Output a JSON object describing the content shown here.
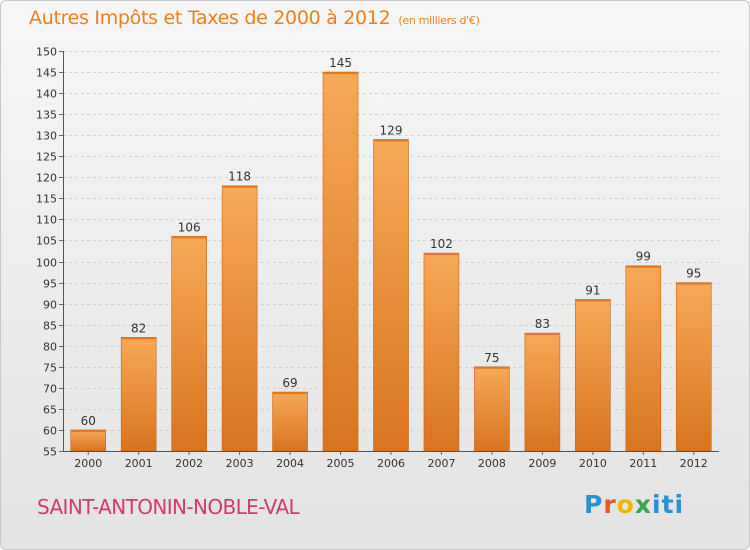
{
  "header": {
    "title": "Autres Impôts et Taxes de 2000 à 2012",
    "unit": "(en milliers d'€)"
  },
  "footer": {
    "commune": "SAINT-ANTONIN-NOBLE-VAL",
    "brand": [
      "P",
      "r",
      "o",
      "x",
      "iti"
    ]
  },
  "colors": {
    "title": "#ef7f1a",
    "commune": "#d33a6c",
    "bar_top": "#f7a957",
    "bar_bottom": "#d9741e"
  },
  "chart_data": {
    "type": "bar",
    "title": "Autres Impôts et Taxes de 2000 à 2012",
    "subtitle": "(en milliers d'€)",
    "xlabel": "",
    "ylabel": "",
    "categories": [
      "2000",
      "2001",
      "2002",
      "2003",
      "2004",
      "2005",
      "2006",
      "2007",
      "2008",
      "2009",
      "2010",
      "2011",
      "2012"
    ],
    "values": [
      60,
      82,
      106,
      118,
      69,
      145,
      129,
      102,
      75,
      83,
      91,
      99,
      95
    ],
    "ylim": [
      55,
      150
    ],
    "yticks": [
      55,
      60,
      65,
      70,
      75,
      80,
      85,
      90,
      95,
      100,
      105,
      110,
      115,
      120,
      125,
      130,
      135,
      140,
      145,
      150
    ],
    "grid": true,
    "legend": "none"
  }
}
